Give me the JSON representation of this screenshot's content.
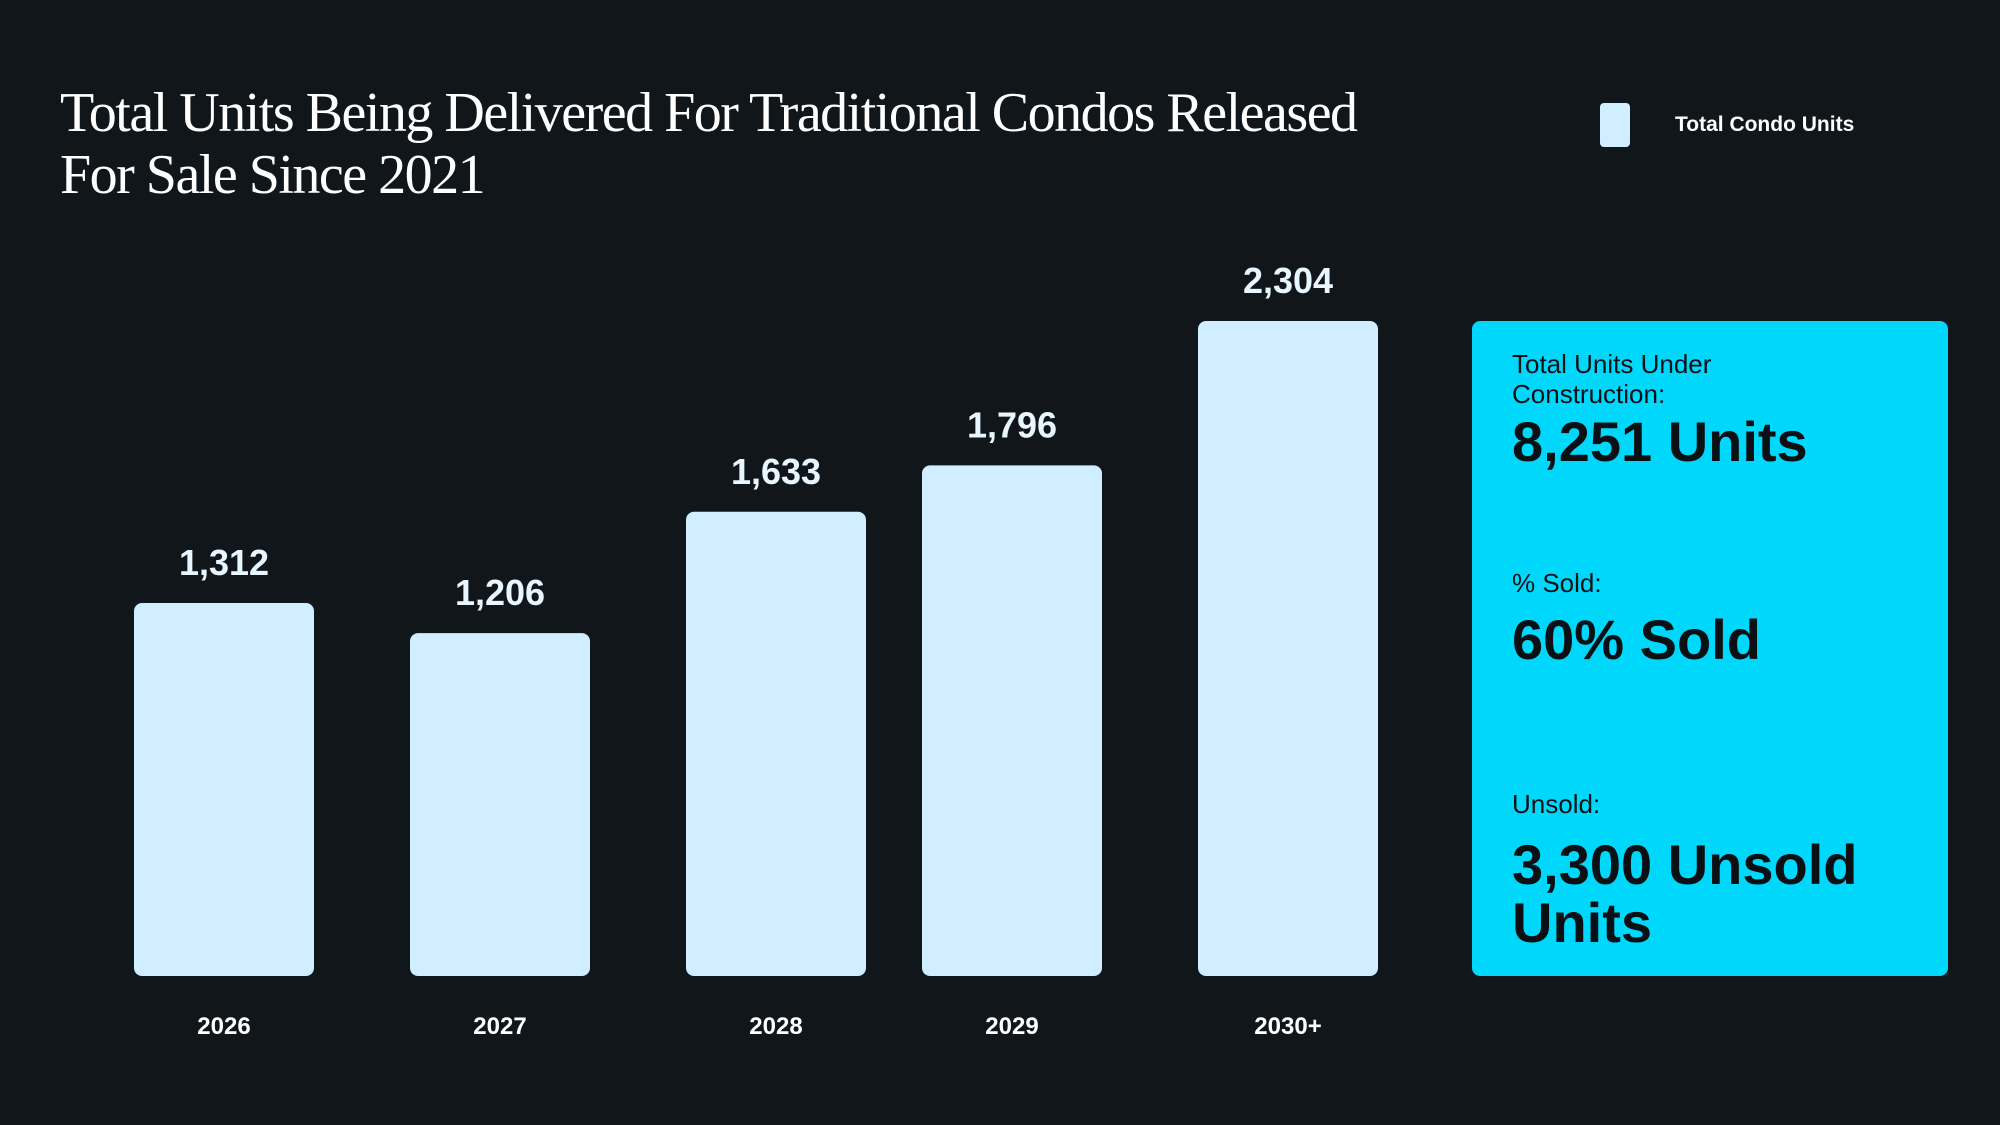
{
  "title": "Total Units Being Delivered For Traditional Condos Released For Sale Since 2021",
  "legend": {
    "label": "Total Condo Units",
    "color": "#cfeeff"
  },
  "chart_data": {
    "type": "bar",
    "title": "Total Units Being Delivered For Traditional Condos Released For Sale Since 2021",
    "categories": [
      "2026",
      "2027",
      "2028",
      "2029",
      "2030+"
    ],
    "series": [
      {
        "name": "Total Condo Units",
        "values": [
          1312,
          1206,
          1633,
          1796,
          2304
        ]
      }
    ],
    "value_labels": [
      "1,312",
      "1,206",
      "1,633",
      "1,796",
      "2,304"
    ],
    "xlabel": "",
    "ylabel": "",
    "ylim": [
      0,
      2304
    ],
    "grid": false,
    "legend_position": "top-right"
  },
  "summary": {
    "under_construction_label": "Total Units Under Construction:",
    "under_construction_value": "8,251 Units",
    "sold_label": "% Sold:",
    "sold_value": "60% Sold",
    "unsold_label": "Unsold:",
    "unsold_value": "3,300 Unsold Units"
  },
  "colors": {
    "background": "#11161a",
    "bar": "#cfeeff",
    "panel": "#00d8fb",
    "text_light": "#ffffff",
    "text_dark": "#0b1014"
  }
}
